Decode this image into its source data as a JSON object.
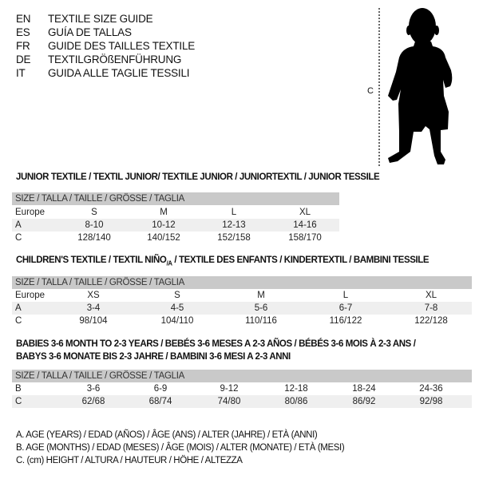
{
  "languages": [
    {
      "code": "EN",
      "name": "TEXTILE SIZE GUIDE"
    },
    {
      "code": "ES",
      "name": "GUÍA DE TALLAS"
    },
    {
      "code": "FR",
      "name": "GUIDE DES TAILLES TEXTILE"
    },
    {
      "code": "DE",
      "name": "TEXTILGRÖßENFÜHRUNG"
    },
    {
      "code": "IT",
      "name": "GUIDA ALLE TAGLIE TESSILI"
    }
  ],
  "figure": {
    "measure_label": "C",
    "icon": "child-silhouette"
  },
  "junior": {
    "title": "JUNIOR TEXTILE / TEXTIL JUNIOR/ TEXTILE JUNIOR / JUNIORTEXTIL / JUNIOR TESSILE",
    "header": "SIZE / TALLA / TAILLE / GRÖSSE / TAGLIA",
    "rows": [
      {
        "label": "Europe",
        "cells": [
          "S",
          "M",
          "L",
          "XL"
        ]
      },
      {
        "label": "A",
        "cells": [
          "8-10",
          "10-12",
          "12-13",
          "14-16"
        ]
      },
      {
        "label": "C",
        "cells": [
          "128/140",
          "140/152",
          "152/158",
          "158/170"
        ]
      }
    ]
  },
  "children": {
    "title_pre": "CHILDREN'S TEXTILE / TEXTIL NIÑO",
    "title_sub": "/A",
    "title_post": " / TEXTILE DES ENFANTS / KINDERTEXTIL / BAMBINI TESSILE",
    "header": "SIZE / TALLA / TAILLE / GRÖSSE / TAGLIA",
    "rows": [
      {
        "label": "Europe",
        "cells": [
          "XS",
          "S",
          "M",
          "L",
          "XL"
        ]
      },
      {
        "label": "A",
        "cells": [
          "3-4",
          "4-5",
          "5-6",
          "6-7",
          "7-8"
        ]
      },
      {
        "label": "C",
        "cells": [
          "98/104",
          "104/110",
          "110/116",
          "116/122",
          "122/128"
        ]
      }
    ]
  },
  "babies": {
    "title_line1": "BABIES 3-6 MONTH TO 2-3 YEARS / BEBÉS 3-6 MESES A 2-3 AÑOS / BÉBÉS 3-6 MOIS À 2-3 ANS /",
    "title_line2": "BABYS 3-6 MONATE BIS 2-3 JAHRE / BAMBINI 3-6 MESI A 2-3 ANNI",
    "header": "SIZE / TALLA / TAILLE / GRÖSSE / TAGLIA",
    "rows": [
      {
        "label": "B",
        "cells": [
          "3-6",
          "6-9",
          "9-12",
          "12-18",
          "18-24",
          "24-36"
        ]
      },
      {
        "label": "C",
        "cells": [
          "62/68",
          "68/74",
          "74/80",
          "80/86",
          "86/92",
          "92/98"
        ]
      }
    ]
  },
  "legend": [
    "A. AGE (YEARS) / EDAD (AÑOS) / ÂGE (ANS) / ALTER (JAHRE) / ETÀ (ANNI)",
    "B. AGE (MONTHS) / EDAD (MESES) / ÂGE (MOIS) / ALTER (MONATE) / ETÀ (MESI)",
    "C. (cm) HEIGHT / ALTURA / HAUTEUR / HÖHE / ALTEZZA"
  ]
}
